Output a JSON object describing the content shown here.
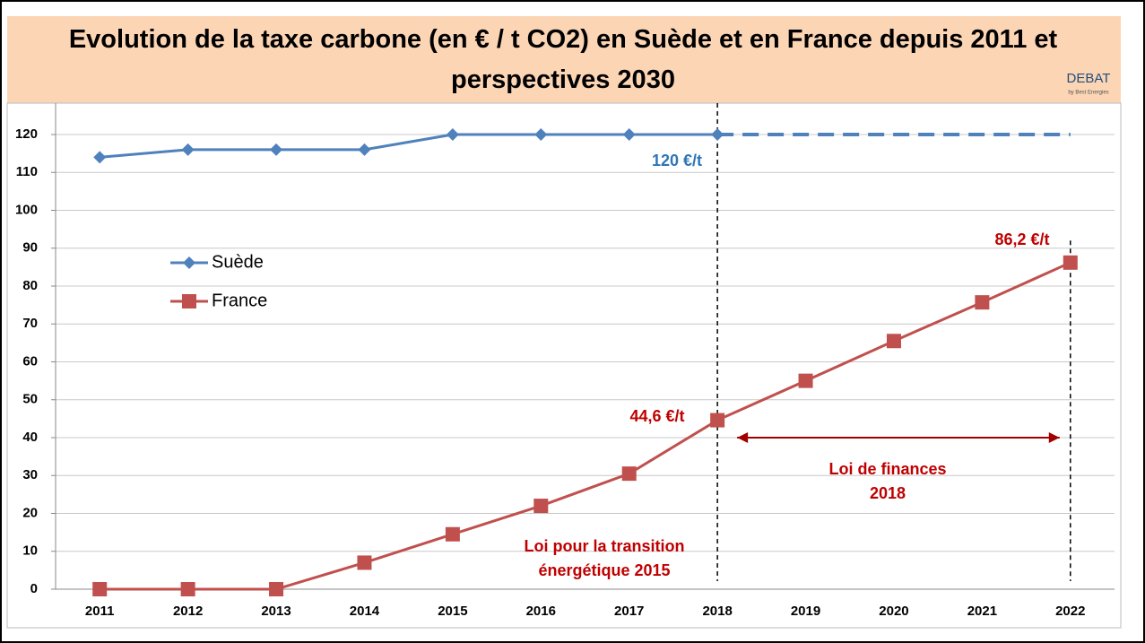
{
  "chart_data": {
    "type": "line",
    "title": "Evolution de la taxe carbone (en € / t CO2) en Suède et en France depuis 2011 et perspectives 2030",
    "logo": {
      "name": "DEBAT",
      "tagline": "by Best Energies"
    },
    "categories": [
      "2011",
      "2012",
      "2013",
      "2014",
      "2015",
      "2016",
      "2017",
      "2018",
      "2019",
      "2020",
      "2021",
      "2022"
    ],
    "series": [
      {
        "name": "Suède",
        "color": "#4f81bd",
        "marker": "diamond",
        "dash_from": "2018",
        "values": [
          114,
          116,
          116,
          116,
          120,
          120,
          120,
          120,
          120,
          120,
          120,
          120
        ]
      },
      {
        "name": "France",
        "color": "#c0504d",
        "marker": "square",
        "values": [
          0,
          0,
          0,
          7,
          14.5,
          22,
          30.5,
          44.6,
          55,
          65.5,
          75.7,
          86.2
        ]
      }
    ],
    "ylim": [
      0,
      120
    ],
    "yticks": [
      0,
      10,
      20,
      30,
      40,
      50,
      60,
      70,
      80,
      90,
      100,
      110,
      120
    ],
    "grid": true,
    "legend": "upper left",
    "annotations": [
      {
        "lines": [
          "120 €/t"
        ],
        "color": "#2e75b6"
      },
      {
        "lines": [
          "44,6 €/t"
        ],
        "color": "#c00000"
      },
      {
        "lines": [
          "86,2 €/t"
        ],
        "color": "#c00000"
      },
      {
        "lines": [
          "Loi pour la transition",
          "énergétique 2015"
        ],
        "color": "#c00000"
      },
      {
        "lines": [
          "Loi de finances",
          "2018"
        ],
        "color": "#c00000"
      }
    ]
  }
}
